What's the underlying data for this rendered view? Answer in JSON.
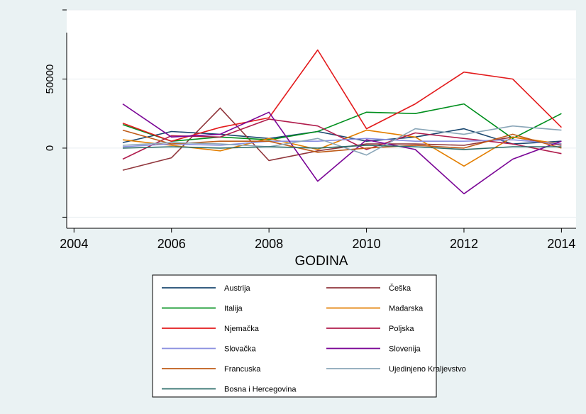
{
  "chart_data": {
    "type": "line",
    "xlabel": "GODINA",
    "ylabel": "",
    "x": [
      2005,
      2006,
      2007,
      2008,
      2009,
      2010,
      2011,
      2012,
      2013,
      2014
    ],
    "xlim": [
      2003.85,
      2014.3
    ],
    "ylim": [
      -58000,
      100000
    ],
    "x_ticks": [
      2004,
      2006,
      2008,
      2010,
      2012,
      2014
    ],
    "y_ticks": [
      -50000,
      0,
      50000,
      100000
    ],
    "y_tick_labels": [
      "0",
      "50000"
    ],
    "y_tick_label_values": [
      0,
      50000
    ],
    "grid": true,
    "legend_position": "bottom",
    "series": [
      {
        "name": "Austrija",
        "color": "#1a476f",
        "values": [
          4000,
          12000,
          10000,
          7000,
          12000,
          5000,
          8000,
          14000,
          3000,
          5000
        ]
      },
      {
        "name": "Češka",
        "color": "#90353b",
        "values": [
          -16000,
          -7000,
          29000,
          -9000,
          -2000,
          3000,
          3000,
          2000,
          8000,
          2000
        ]
      },
      {
        "name": "Italija",
        "color": "#008f1d",
        "values": [
          17000,
          5000,
          8000,
          6000,
          12000,
          26000,
          25000,
          32000,
          7000,
          25000
        ]
      },
      {
        "name": "Mađarska",
        "color": "#e37e00",
        "values": [
          6000,
          2000,
          -2000,
          7000,
          -1000,
          13000,
          8000,
          -13000,
          8000,
          3000
        ]
      },
      {
        "name": "Njemačka",
        "color": "#e31a1c",
        "values": [
          18000,
          5000,
          15000,
          22000,
          71000,
          14000,
          32000,
          55000,
          50000,
          15000
        ]
      },
      {
        "name": "Poljska",
        "color": "#b01c4c",
        "values": [
          -8000,
          9000,
          8000,
          21000,
          16000,
          -1000,
          11000,
          7000,
          3000,
          -4000
        ]
      },
      {
        "name": "Slovačka",
        "color": "#8a8fe0",
        "values": [
          1000,
          3000,
          2000,
          5000,
          5000,
          7000,
          5000,
          5000,
          6000,
          3000
        ]
      },
      {
        "name": "Slovenija",
        "color": "#7a0596",
        "values": [
          32000,
          8000,
          10000,
          26000,
          -24000,
          6000,
          -1000,
          -33000,
          -8000,
          5000
        ]
      },
      {
        "name": "Francuska",
        "color": "#bf5b17",
        "values": [
          13000,
          3000,
          5000,
          5000,
          -3000,
          0,
          2000,
          0,
          10000,
          0
        ]
      },
      {
        "name": "Ujedinjeno Kraljevstvo",
        "color": "#8aa6b8",
        "values": [
          2000,
          4000,
          3000,
          1000,
          7000,
          -5000,
          14000,
          10000,
          16000,
          13000
        ]
      },
      {
        "name": "Bosna i Hercegovina",
        "color": "#2e6e6a",
        "values": [
          0,
          1000,
          0,
          1000,
          0,
          2000,
          1000,
          -1000,
          1000,
          1000
        ]
      }
    ]
  }
}
